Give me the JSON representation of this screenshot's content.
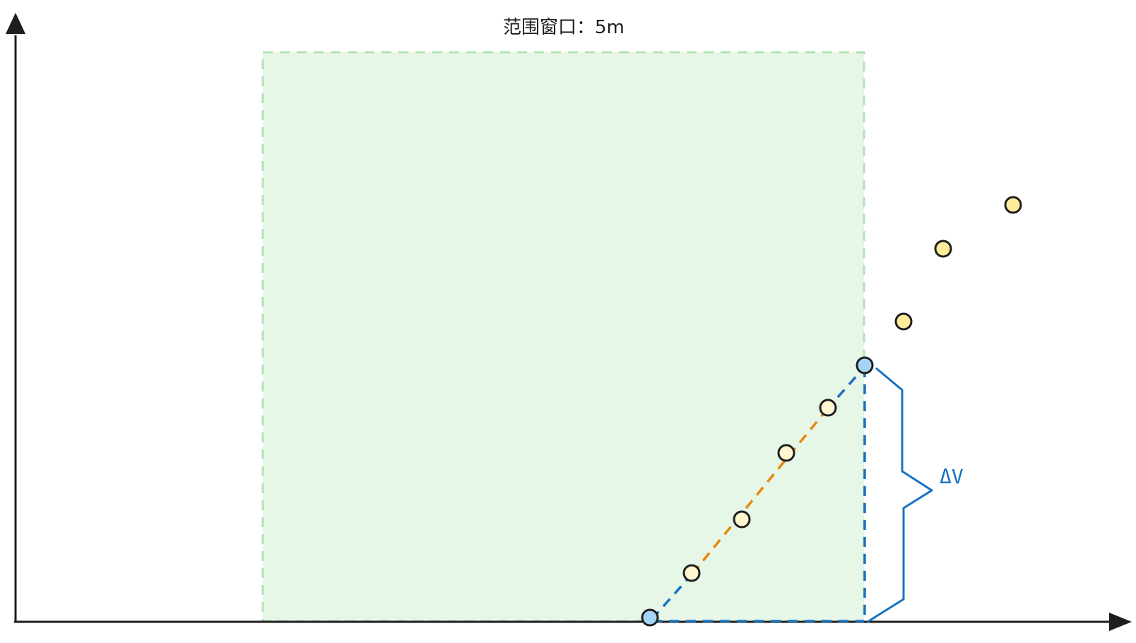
{
  "diagram": {
    "window_label": "范围窗口：5m",
    "delta_label": "ΔV",
    "colors": {
      "axis": "#1e1e1e",
      "window_fill": "#e6f7e7",
      "window_border": "#b2e2b6",
      "blue_line": "#1971c2",
      "orange_line": "#e8860c",
      "endpoint_fill": "#a5d3f7",
      "inner_point_fill": "#fff6cf",
      "outer_point_fill": "#ffec99",
      "point_stroke": "#1e1e1e"
    }
  }
}
